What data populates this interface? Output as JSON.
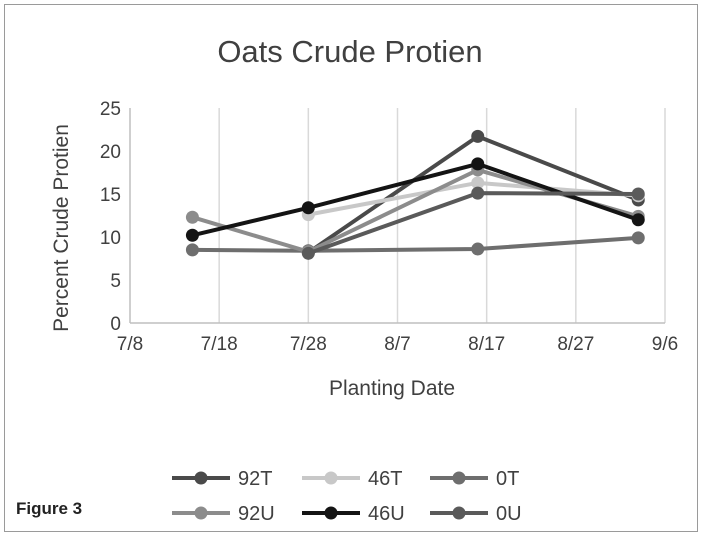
{
  "chart_data": {
    "type": "line",
    "title": "Oats Crude Protien",
    "xlabel": "Planting Date",
    "ylabel": "Percent Crude Protien",
    "x_ticks": [
      "7/8",
      "7/18",
      "7/28",
      "8/7",
      "8/17",
      "8/27",
      "9/6"
    ],
    "y_ticks": [
      "0",
      "5",
      "10",
      "15",
      "20",
      "25"
    ],
    "xlim": [
      "7/8",
      "9/6"
    ],
    "ylim": [
      0,
      25
    ],
    "grid": "vertical",
    "legend_position": "bottom",
    "series": [
      {
        "name": "92T",
        "color": "#4a4a4a",
        "points": [
          {
            "x": "7/28",
            "y": 8.2
          },
          {
            "x": "8/16",
            "y": 21.7
          },
          {
            "x": "9/3",
            "y": 14.3
          }
        ]
      },
      {
        "name": "46T",
        "color": "#c8c8c8",
        "points": [
          {
            "x": "7/28",
            "y": 12.6
          },
          {
            "x": "8/16",
            "y": 16.3
          },
          {
            "x": "9/3",
            "y": 14.8
          }
        ]
      },
      {
        "name": "0T",
        "color": "#6e6e6e",
        "points": [
          {
            "x": "7/15",
            "y": 8.5
          },
          {
            "x": "7/28",
            "y": 8.4
          },
          {
            "x": "8/16",
            "y": 8.6
          },
          {
            "x": "9/3",
            "y": 9.9
          }
        ]
      },
      {
        "name": "92U",
        "color": "#8c8c8c",
        "points": [
          {
            "x": "7/15",
            "y": 12.3
          },
          {
            "x": "7/28",
            "y": 8.3
          },
          {
            "x": "8/16",
            "y": 17.8
          },
          {
            "x": "9/3",
            "y": 12.4
          }
        ]
      },
      {
        "name": "46U",
        "color": "#141414",
        "points": [
          {
            "x": "7/15",
            "y": 10.2
          },
          {
            "x": "7/28",
            "y": 13.4
          },
          {
            "x": "8/16",
            "y": 18.5
          },
          {
            "x": "9/3",
            "y": 12.0
          }
        ]
      },
      {
        "name": "0U",
        "color": "#5a5a5a",
        "points": [
          {
            "x": "7/28",
            "y": 8.1
          },
          {
            "x": "8/16",
            "y": 15.1
          },
          {
            "x": "9/3",
            "y": 15.0
          }
        ]
      }
    ]
  },
  "caption": "Figure 3"
}
